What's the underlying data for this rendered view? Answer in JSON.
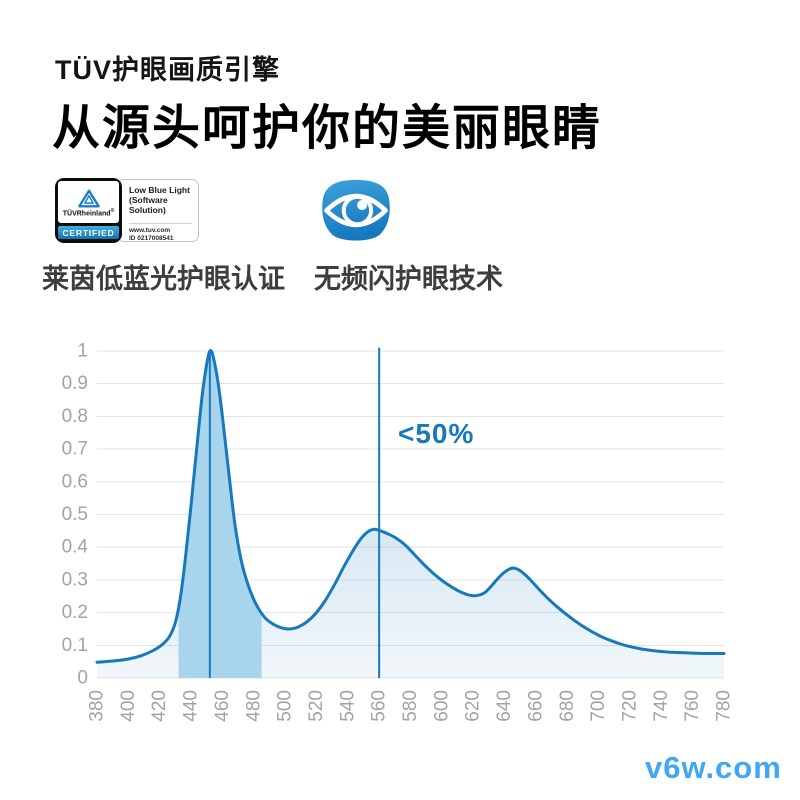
{
  "header": {
    "eyebrow": "TÜV护眼画质引擎",
    "title": "从源头呵护你的美丽眼睛"
  },
  "certifications": {
    "tuv_badge": {
      "brand_bold": "TÜV",
      "brand_rest": "Rheinland",
      "registered_mark": "®",
      "certified_label": "CERTIFIED",
      "cert_name_lines": [
        "Low Blue Light",
        "(Software",
        "Solution)"
      ],
      "website": "www.tuv.com",
      "cert_id": "ID 0217008541",
      "caption": "莱茵低蓝光护眼认证"
    },
    "flicker_free": {
      "icon": "eye-icon",
      "caption": "无频闪护眼技术"
    }
  },
  "chart_data": {
    "type": "area",
    "title": "",
    "xlabel": "",
    "ylabel": "",
    "x_range": [
      380,
      780
    ],
    "y_range": [
      0,
      1
    ],
    "x_ticks": [
      380,
      400,
      420,
      440,
      460,
      480,
      500,
      520,
      540,
      560,
      580,
      600,
      620,
      640,
      660,
      680,
      700,
      720,
      740,
      760,
      780
    ],
    "y_ticks": [
      1,
      0.9,
      0.8,
      0.7,
      0.6,
      0.5,
      0.4,
      0.3,
      0.2,
      0.1,
      0
    ],
    "grid": true,
    "legend": false,
    "x_tick_rotation": -90,
    "series": [
      {
        "name": "spectral-power-distribution",
        "points": [
          [
            380,
            0.048
          ],
          [
            390,
            0.052
          ],
          [
            400,
            0.058
          ],
          [
            408,
            0.068
          ],
          [
            415,
            0.082
          ],
          [
            421,
            0.1
          ],
          [
            426,
            0.125
          ],
          [
            430,
            0.17
          ],
          [
            433,
            0.24
          ],
          [
            436,
            0.35
          ],
          [
            440,
            0.53
          ],
          [
            444,
            0.72
          ],
          [
            447,
            0.86
          ],
          [
            450,
            0.96
          ],
          [
            452,
            1.0
          ],
          [
            454,
            0.985
          ],
          [
            457,
            0.91
          ],
          [
            460,
            0.8
          ],
          [
            464,
            0.63
          ],
          [
            468,
            0.47
          ],
          [
            472,
            0.36
          ],
          [
            476,
            0.29
          ],
          [
            480,
            0.24
          ],
          [
            484,
            0.205
          ],
          [
            488,
            0.18
          ],
          [
            493,
            0.163
          ],
          [
            498,
            0.153
          ],
          [
            503,
            0.15
          ],
          [
            508,
            0.155
          ],
          [
            514,
            0.172
          ],
          [
            520,
            0.2
          ],
          [
            526,
            0.24
          ],
          [
            532,
            0.29
          ],
          [
            538,
            0.345
          ],
          [
            544,
            0.395
          ],
          [
            549,
            0.43
          ],
          [
            553,
            0.448
          ],
          [
            557,
            0.455
          ],
          [
            561,
            0.45
          ],
          [
            566,
            0.44
          ],
          [
            571,
            0.427
          ],
          [
            577,
            0.405
          ],
          [
            583,
            0.375
          ],
          [
            589,
            0.345
          ],
          [
            595,
            0.318
          ],
          [
            601,
            0.295
          ],
          [
            607,
            0.276
          ],
          [
            612,
            0.263
          ],
          [
            617,
            0.254
          ],
          [
            622,
            0.252
          ],
          [
            627,
            0.26
          ],
          [
            631,
            0.278
          ],
          [
            635,
            0.3
          ],
          [
            639,
            0.32
          ],
          [
            643,
            0.333
          ],
          [
            646,
            0.336
          ],
          [
            650,
            0.328
          ],
          [
            654,
            0.312
          ],
          [
            658,
            0.292
          ],
          [
            663,
            0.266
          ],
          [
            668,
            0.242
          ],
          [
            673,
            0.22
          ],
          [
            678,
            0.2
          ],
          [
            684,
            0.178
          ],
          [
            690,
            0.158
          ],
          [
            696,
            0.141
          ],
          [
            702,
            0.126
          ],
          [
            708,
            0.114
          ],
          [
            714,
            0.104
          ],
          [
            720,
            0.096
          ],
          [
            727,
            0.089
          ],
          [
            734,
            0.084
          ],
          [
            742,
            0.08
          ],
          [
            750,
            0.078
          ],
          [
            760,
            0.076
          ],
          [
            770,
            0.075
          ],
          [
            780,
            0.075
          ]
        ]
      }
    ],
    "highlight_band": {
      "x_from": 432,
      "x_to": 485
    },
    "marker_lines": [
      {
        "x": 452,
        "y_top": 1.0
      },
      {
        "x": 560,
        "y_top": 1.01
      }
    ],
    "annotation": {
      "text": "<50%",
      "x": 572,
      "y": 0.76
    },
    "colors": {
      "line": "#1779bd",
      "band": "#a8d4ec",
      "fill_top": "rgba(23,121,189,0.30)",
      "fill_bottom": "rgba(23,121,189,0.06)",
      "grid": "#e3e3e3",
      "tick": "#a3a3a3",
      "annotation": "#1779bd"
    }
  },
  "watermark": {
    "text": "v6w.com",
    "color": "#41a6f3"
  }
}
